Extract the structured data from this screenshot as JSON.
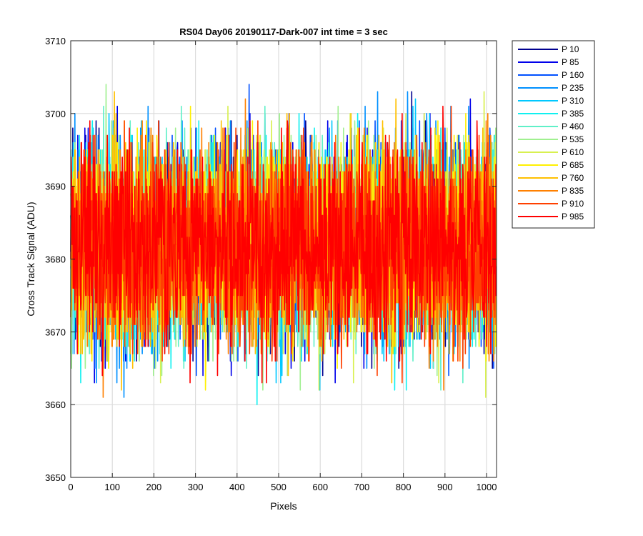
{
  "chart_data": {
    "type": "line",
    "title": "RS04 Day06 20190117-Dark-007 int time = 3 sec",
    "xlabel": "Pixels",
    "ylabel": "Cross Track Signal (ADU)",
    "xlim": [
      0,
      1024
    ],
    "ylim": [
      3650,
      3710
    ],
    "xticks": [
      0,
      100,
      200,
      300,
      400,
      500,
      600,
      700,
      800,
      900,
      1000
    ],
    "yticks": [
      3650,
      3660,
      3670,
      3680,
      3690,
      3700,
      3710
    ],
    "grid": true,
    "legend_position": "outside-top-right",
    "noise_model": {
      "mean": 3682,
      "std": 7,
      "min": 3654,
      "max": 3710,
      "samples_per_series": 1024
    },
    "series": [
      {
        "name": "P 10",
        "color": "#00008F",
        "seed": 11
      },
      {
        "name": "P 85",
        "color": "#0000EA",
        "seed": 23
      },
      {
        "name": "P 160",
        "color": "#0050FF",
        "seed": 37
      },
      {
        "name": "P 235",
        "color": "#0090FF",
        "seed": 41
      },
      {
        "name": "P 310",
        "color": "#00C8FF",
        "seed": 53
      },
      {
        "name": "P 385",
        "color": "#10F0F0",
        "seed": 67
      },
      {
        "name": "P 460",
        "color": "#60F0C8",
        "seed": 71
      },
      {
        "name": "P 535",
        "color": "#A0F090",
        "seed": 83
      },
      {
        "name": "P 610",
        "color": "#D8F050",
        "seed": 97
      },
      {
        "name": "P 685",
        "color": "#FFF000",
        "seed": 101
      },
      {
        "name": "P 760",
        "color": "#FFC000",
        "seed": 113
      },
      {
        "name": "P 835",
        "color": "#FF8000",
        "seed": 127
      },
      {
        "name": "P 910",
        "color": "#FF4000",
        "seed": 131
      },
      {
        "name": "P 985",
        "color": "#FF0000",
        "seed": 149
      }
    ]
  }
}
